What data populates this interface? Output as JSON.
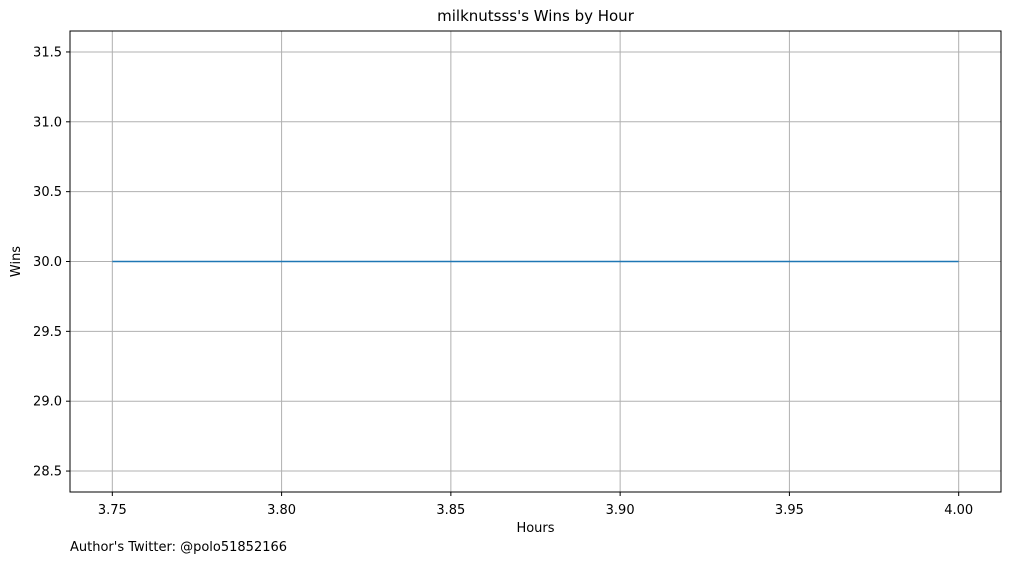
{
  "chart_data": {
    "type": "line",
    "title": "milknutsss's Wins by Hour",
    "xlabel": "Hours",
    "ylabel": "Wins",
    "xlim": [
      3.7375,
      4.0125
    ],
    "ylim": [
      28.35,
      31.65
    ],
    "xticks": [
      3.75,
      3.8,
      3.85,
      3.9,
      3.95,
      4.0
    ],
    "xtick_labels": [
      "3.75",
      "3.80",
      "3.85",
      "3.90",
      "3.95",
      "4.00"
    ],
    "yticks": [
      28.5,
      29.0,
      29.5,
      30.0,
      30.5,
      31.0,
      31.5
    ],
    "ytick_labels": [
      "28.5",
      "29.0",
      "29.5",
      "30.0",
      "30.5",
      "31.0",
      "31.5"
    ],
    "grid": true,
    "series": [
      {
        "x": [
          3.75,
          4.0
        ],
        "y": [
          30,
          30
        ],
        "color": "#1f77b4"
      }
    ]
  },
  "footer": {
    "text": "Author's Twitter: @polo51852166"
  }
}
